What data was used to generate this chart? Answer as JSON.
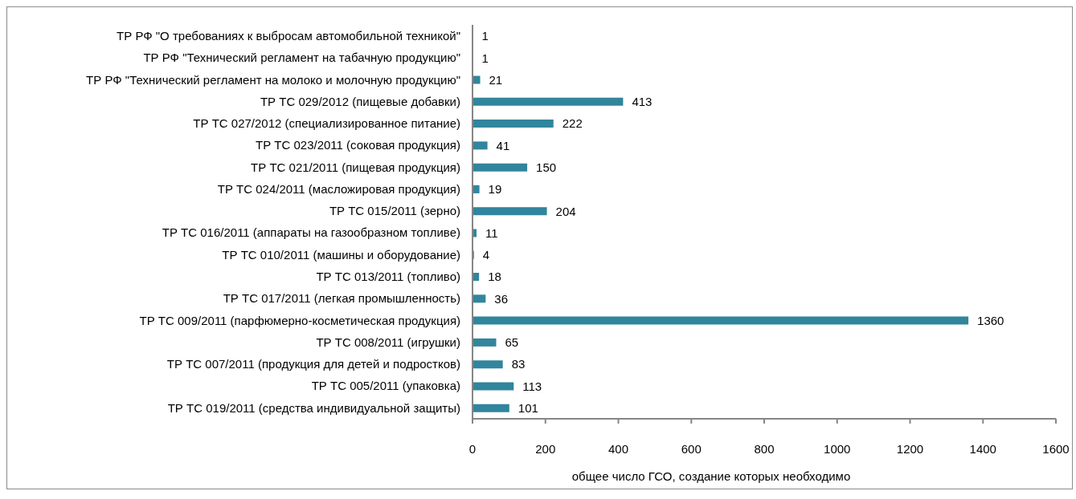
{
  "chart_data": {
    "type": "bar",
    "orientation": "horizontal",
    "xlabel": "общее число ГСО, создание которых необходимо",
    "categories": [
      "ТР РФ \"О требованиях к выбросам автомобильной техникой\"",
      "ТР РФ \"Технический регламент на табачную продукцию\"",
      "ТР РФ \"Технический регламент на молоко и молочную продукцию\"",
      "ТР ТС 029/2012 (пищевые добавки)",
      "ТР ТС 027/2012 (специализированное питание)",
      "ТР ТС 023/2011 (соковая продукция)",
      "ТР ТС 021/2011 (пищевая продукция)",
      "ТР ТС 024/2011 (масложировая продукция)",
      "ТР ТС 015/2011 (зерно)",
      "ТР ТС 016/2011 (аппараты на газообразном топливе)",
      "ТР ТС 010/2011 (машины и оборудование)",
      "ТР ТС 013/2011 (топливо)",
      "ТР ТС 017/2011 (легкая промышленность)",
      "ТР ТС 009/2011 (парфюмерно-косметическая продукция)",
      "ТР ТС 008/2011 (игрушки)",
      "ТР ТС 007/2011 (продукция для детей и подростков)",
      "ТР ТС 005/2011 (упаковка)",
      "ТР ТС 019/2011 (средства индивидуальной защиты)"
    ],
    "values": [
      1,
      1,
      21,
      413,
      222,
      41,
      150,
      19,
      204,
      11,
      4,
      18,
      36,
      1360,
      65,
      83,
      113,
      101
    ],
    "color": "#31859c",
    "xlim": [
      0,
      1600
    ],
    "xticks": [
      0,
      200,
      400,
      600,
      800,
      1000,
      1200,
      1400,
      1600
    ],
    "data_labels": true
  }
}
